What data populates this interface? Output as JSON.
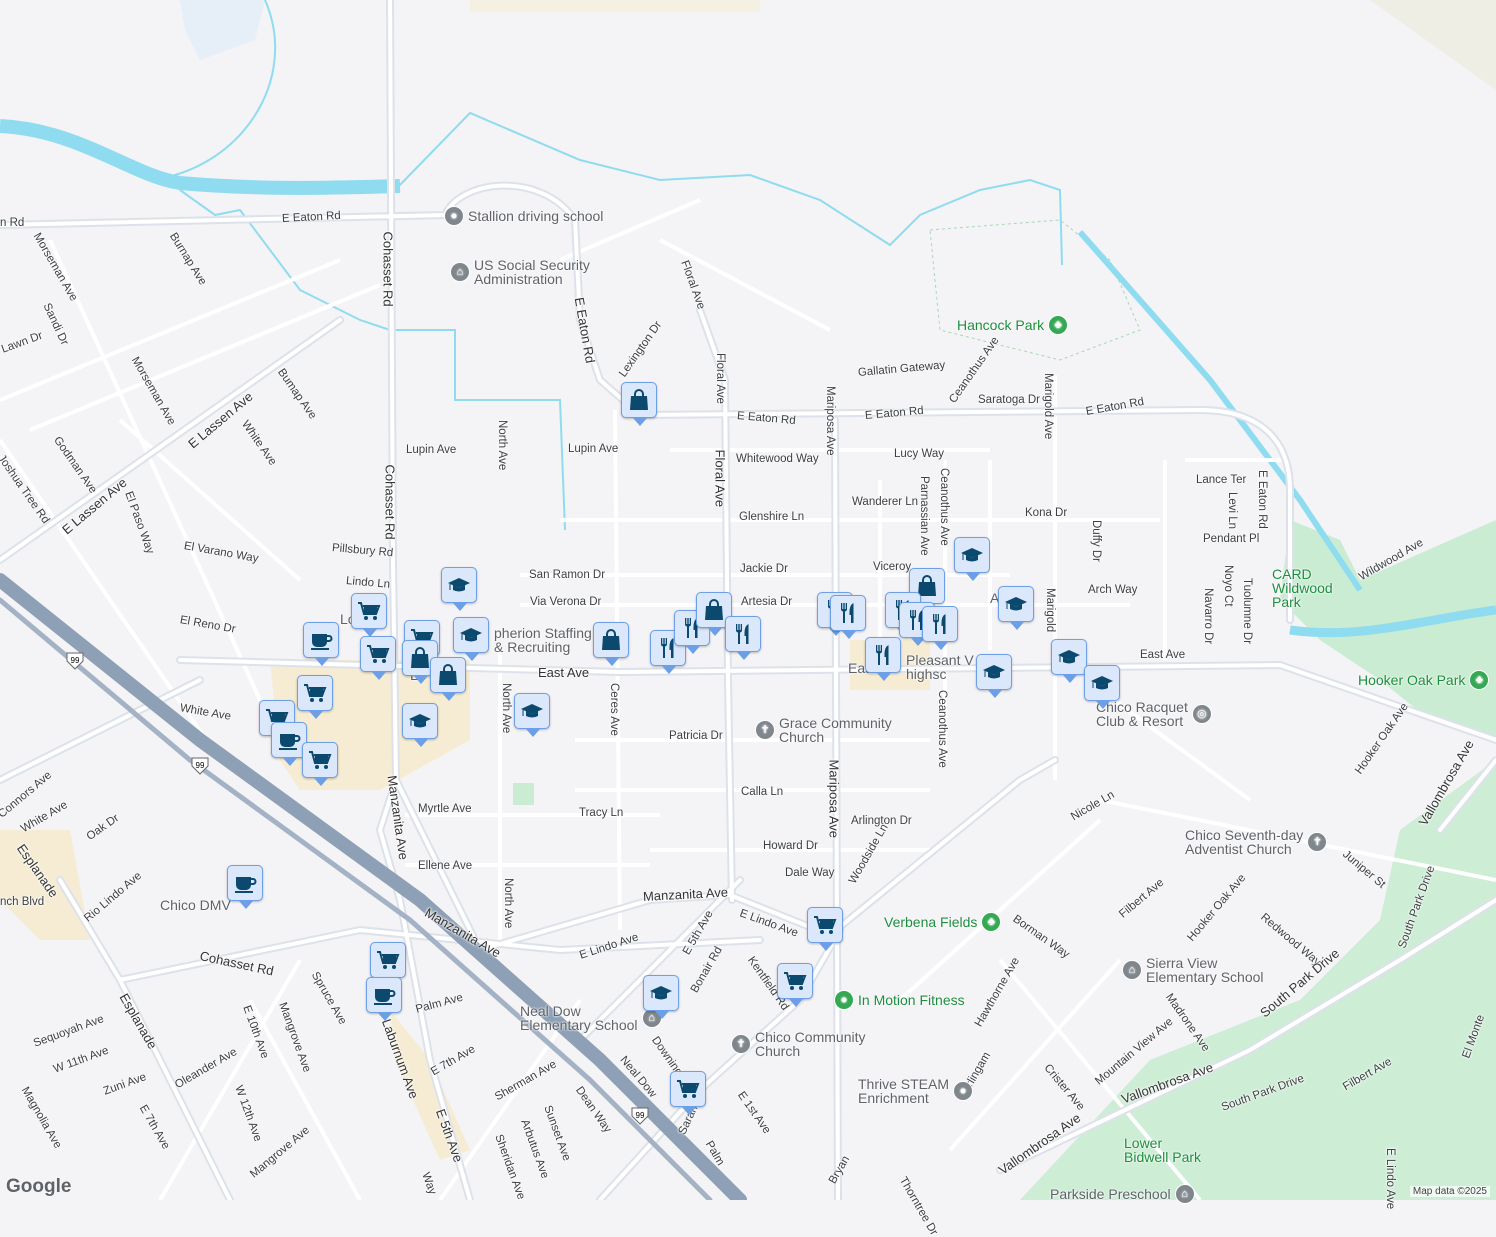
{
  "map": {
    "colors": {
      "background": "#f4f3f6",
      "water": "#8fdcf0",
      "park": "#c9ecd2",
      "highway": "#8ea0b5",
      "road": "#ffffff",
      "commercial": "#f7ecd2",
      "marker_fill": "#dbe7fb",
      "marker_border": "#6c9fe6",
      "marker_icon": "#0b4a6e"
    },
    "streets": [
      "E Eaton Rd",
      "n Rd",
      "Cohasset Rd",
      "Morseman Ave",
      "Burnap Ave",
      "Lawn Dr",
      "Sandi Dr",
      "Morseman Ave",
      "E Lassen Ave",
      "White Ave",
      "Bumap Ave",
      "Godman Ave",
      "Joshua Tree Rd",
      "E Lassen Ave",
      "El Paso Way",
      "El Varano Way",
      "El Reno Dr",
      "Pillsbury Rd",
      "Lindo Ln",
      "Lupin Ave",
      "Cohasset Rd",
      "North Ave",
      "E Eaton Rd",
      "Lexington Dr",
      "Floral Ave",
      "Floral Ave",
      "E Eaton Rd",
      "Lupin Ave",
      "Floral Ave",
      "Mariposa Ave",
      "Gallatin Gateway",
      "Ceanothus Ave",
      "E Eaton Rd",
      "Saratoga Dr",
      "Marigold Ave",
      "E Eaton Rd",
      "Whitewood Way",
      "Lucy Way",
      "Wanderer Ln",
      "Parnassian Ave",
      "Ceanothus Ave",
      "Kona Dr",
      "Glenshire Ln",
      "Jackie Dr",
      "Viceroy",
      "San Ramon Dr",
      "Via Verona Dr",
      "Artesia Dr",
      "Arch Way",
      "Duffy Dr",
      "Lance Ter",
      "Levi Ln",
      "E Eaton Rd",
      "Pendant Pl",
      "Noyo Ct",
      "Navarro Dr",
      "Tuolumne Dr",
      "Wildwood Ave",
      "Marigold",
      "East Ave",
      "East Ave",
      "North Ave",
      "Ceres Ave",
      "White Ave",
      "Patricia Dr",
      "Ceanothus Ave",
      "Mariposa Ave",
      "Calla Ln",
      "Arlington Dr",
      "Myrtle Ave",
      "Tracy Ln",
      "Manzanita Ave",
      "Ellene Ave",
      "North Ave",
      "Howard Dr",
      "Dale Way",
      "Woodside Ln",
      "Manzanita Ave",
      "Manzanita Ave",
      "E Lindo Ave",
      "E Lindo Ave",
      "E 5th Ave",
      "Bonair Rd",
      "Kentfield Rd",
      "Cohasset Rd",
      "Connors Ave",
      "White Ave",
      "Oak Dr",
      "Esplanade",
      "Rio Lindo Ave",
      "nch Blvd",
      "Esplanade",
      "Nicole Ln",
      "Hooker Oak Ave",
      "Vallombrosa Ave",
      "Juniper St",
      "Filbert Ave",
      "Borman Way",
      "Hawthorne Ave",
      "Hooker Oak Ave",
      "Redwood Way",
      "Madrone Ave",
      "Mountain View Ave",
      "Crister Ave",
      "Vallombrosa Ave",
      "Vallombrosa Ave",
      "South Park Drive",
      "South Park Drive",
      "South Park Drive",
      "Filbert Ave",
      "Burlingam",
      "El Monte",
      "E Lindo Ave",
      "Palm Ave",
      "Spruce Ave",
      "Mangrove Ave",
      "Laburnum Ave",
      "E 10th Ave",
      "Oleander Ave",
      "W 12th Ave",
      "Sequoyah Ave",
      "W 11th Ave",
      "Zuni Ave",
      "Magnolia Ave",
      "E 7th Ave",
      "E 7th Ave",
      "Mangrove Ave",
      "E 5th Ave",
      "Sherman Ave",
      "Sunset Ave",
      "Arbutus Ave",
      "Sheridan Ave",
      "Dean Way",
      "Neal Dow",
      "Downing Ave",
      "E 1st Ave",
      "Sarah Ave",
      "Palm",
      "Way",
      "Bryan",
      "Thorntree Dr"
    ],
    "highway_shields": [
      "99",
      "99",
      "99"
    ],
    "places": [
      {
        "name": "Stallion driving school",
        "icon": "pin-icon"
      },
      {
        "name": "US Social Security\nAdministration",
        "icon": "bank-icon"
      },
      {
        "name": "Hancock Park",
        "icon": "tree-icon"
      },
      {
        "name": "CARD\nWildwood\nPark",
        "icon": "none"
      },
      {
        "name": "Hooker Oak Park",
        "icon": "tree-icon"
      },
      {
        "name": "pherion Staffing\n& Recruiting",
        "icon": "none"
      },
      {
        "name": "Grace Community\nChurch",
        "icon": "cross-icon"
      },
      {
        "name": "Pleasant V\nhighsc",
        "icon": "school-icon"
      },
      {
        "name": "Chico Racquet\nClub & Resort",
        "icon": "sports-icon"
      },
      {
        "name": "Chico Seventh-day\nAdventist Church",
        "icon": "cross-icon"
      },
      {
        "name": "Verbena Fields",
        "icon": "tree-icon"
      },
      {
        "name": "In Motion Fitness",
        "icon": "pin-icon"
      },
      {
        "name": "Sierra View\nElementary School",
        "icon": "school-icon"
      },
      {
        "name": "Neal Dow\nElementary School",
        "icon": "school-icon"
      },
      {
        "name": "Chico Community\nChurch",
        "icon": "cross-icon"
      },
      {
        "name": "Thrive STEAM\nEnrichment",
        "icon": "pin-icon"
      },
      {
        "name": "Lower\nBidwell Park",
        "icon": "none"
      },
      {
        "name": "Parkside Preschool",
        "icon": "school-icon"
      },
      {
        "name": "Chico DMV",
        "icon": "none"
      },
      {
        "name": "Lo",
        "icon": "none"
      },
      {
        "name": "E",
        "icon": "none"
      },
      {
        "name": "East",
        "icon": "none"
      },
      {
        "name": "A",
        "icon": "none"
      }
    ],
    "markers": [
      "cap",
      "cart",
      "cup",
      "cart",
      "cap",
      "cart",
      "bag",
      "bag",
      "cart",
      "cart",
      "cup",
      "cart",
      "cap",
      "cap",
      "bag",
      "fork",
      "fork",
      "bag",
      "fork",
      "fork",
      "fork",
      "bag",
      "fork",
      "fork",
      "fork",
      "fork",
      "cap",
      "cap",
      "cap",
      "cap",
      "cap",
      "cup",
      "cart",
      "cup",
      "cart",
      "cart",
      "cap",
      "cart",
      "bag"
    ],
    "footer": {
      "logo": "Google",
      "attribution": "Map data ©2025"
    }
  }
}
